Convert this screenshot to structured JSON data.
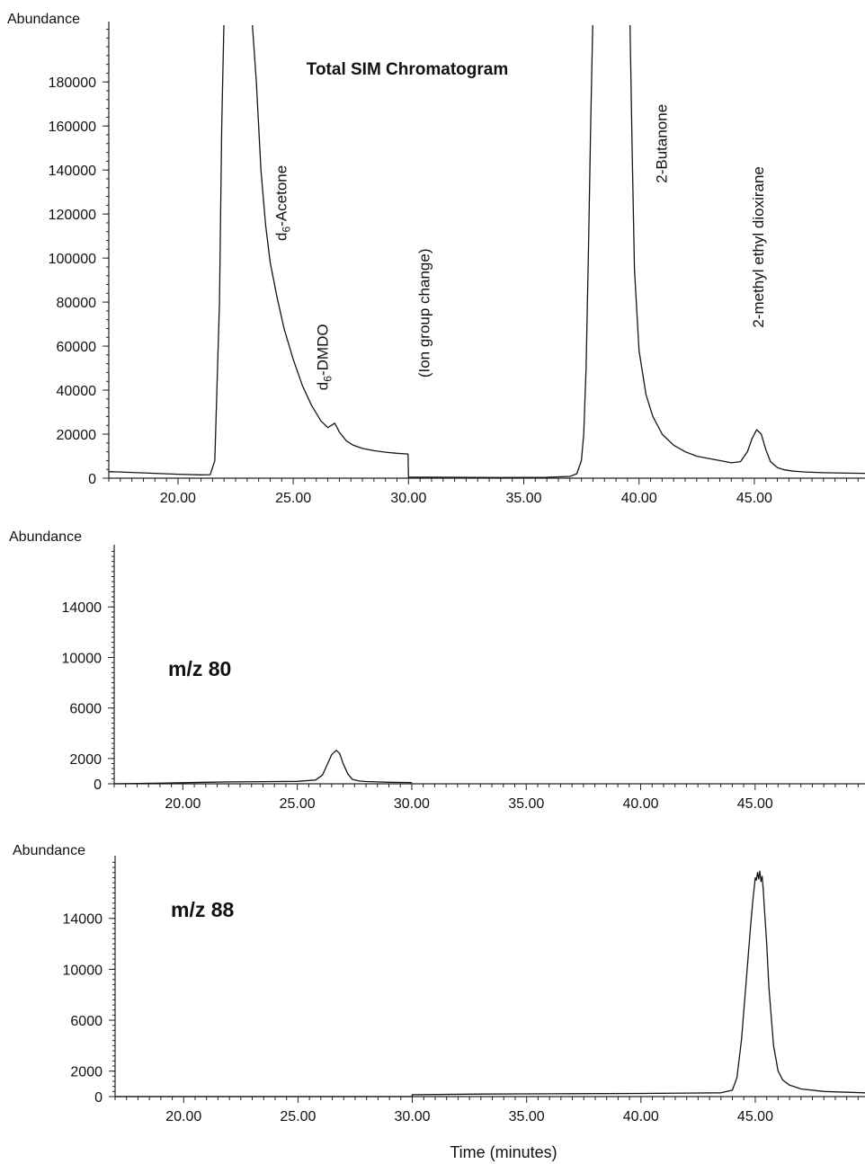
{
  "chart_data": [
    {
      "type": "line",
      "id": "total",
      "title": "Total SIM Chromatogram",
      "ylabel": "Abundance",
      "xlim": [
        17.0,
        49.8
      ],
      "ylim": [
        0,
        205000
      ],
      "xticks": [
        20,
        25,
        30,
        35,
        40,
        45
      ],
      "xtick_labels": [
        "20.00",
        "25.00",
        "30.00",
        "35.00",
        "40.00",
        "45.00"
      ],
      "yticks": [
        0,
        20000,
        40000,
        60000,
        80000,
        100000,
        120000,
        140000,
        160000,
        180000
      ],
      "ytick_labels": [
        "0",
        "20000",
        "40000",
        "60000",
        "80000",
        "100000",
        "120000",
        "140000",
        "160000",
        "180000"
      ],
      "series": [
        {
          "x": [
            17.0,
            18.0,
            19.0,
            20.0,
            21.0,
            21.4,
            21.6,
            21.8,
            21.9,
            22.0,
            22.2,
            22.5,
            23.0,
            23.2,
            23.4,
            23.6,
            23.8,
            24.0,
            24.3,
            24.6,
            25.0,
            25.4,
            25.8,
            26.2,
            26.5,
            26.8,
            27.0,
            27.3,
            27.6,
            28.0,
            28.5,
            29.0,
            29.5,
            29.98,
            30.0,
            32.0,
            34.0,
            36.0,
            37.0,
            37.3,
            37.5,
            37.6,
            37.7,
            37.8,
            37.9,
            38.0,
            39.0,
            39.6,
            39.7,
            39.8,
            40.0,
            40.3,
            40.6,
            41.0,
            41.5,
            42.0,
            42.5,
            43.0,
            43.5,
            44.0,
            44.4,
            44.7,
            44.9,
            45.1,
            45.3,
            45.5,
            45.7,
            46.0,
            46.3,
            46.7,
            47.2,
            48.0,
            49.0,
            49.8
          ],
          "y": [
            3000,
            2600,
            2200,
            1800,
            1500,
            1600,
            8000,
            80000,
            160000,
            210000,
            210000,
            210000,
            210000,
            210000,
            180000,
            140000,
            115000,
            98000,
            82000,
            68000,
            54000,
            42000,
            33000,
            26000,
            23000,
            25000,
            21000,
            17000,
            15000,
            13500,
            12500,
            11800,
            11300,
            11000,
            500,
            400,
            300,
            400,
            800,
            2000,
            8000,
            20000,
            50000,
            100000,
            160000,
            210000,
            210000,
            210000,
            150000,
            95000,
            58000,
            38000,
            28000,
            20000,
            15000,
            12000,
            10000,
            9000,
            8000,
            7000,
            7500,
            12000,
            18000,
            22000,
            20000,
            13000,
            7500,
            4800,
            3800,
            3200,
            2800,
            2500,
            2300,
            2200
          ]
        }
      ],
      "annotations": [
        {
          "text": "d6-Acetone",
          "base": "d",
          "sub": "6",
          "rest": "-Acetone",
          "x": 24.7,
          "y": 125000
        },
        {
          "text": "d6-DMDO",
          "base": "d",
          "sub": "6",
          "rest": "-DMDO",
          "x": 26.5,
          "y": 55000
        },
        {
          "text": "(Ion group change)",
          "x": 30.9,
          "y": 75000
        },
        {
          "text": "2-Butanone",
          "x": 41.2,
          "y": 152000
        },
        {
          "text": "2-methyl ethyl dioxirane",
          "x": 45.4,
          "y": 105000
        }
      ]
    },
    {
      "type": "line",
      "id": "mz80",
      "label": "m/z 80",
      "ylabel": "Abundance",
      "xlim": [
        17.0,
        49.8
      ],
      "ylim": [
        0,
        18500
      ],
      "xticks": [
        20,
        25,
        30,
        35,
        40,
        45
      ],
      "xtick_labels": [
        "20.00",
        "25.00",
        "30.00",
        "35.00",
        "40.00",
        "45.00"
      ],
      "yticks": [
        0,
        2000,
        6000,
        10000,
        14000
      ],
      "ytick_labels": [
        "0",
        "2000",
        "6000",
        "10000",
        "14000"
      ],
      "series": [
        {
          "x": [
            17.0,
            19.0,
            21.0,
            22.0,
            23.5,
            25.0,
            25.8,
            26.1,
            26.3,
            26.5,
            26.7,
            26.85,
            27.0,
            27.2,
            27.4,
            27.7,
            28.0,
            28.5,
            29.0,
            29.98,
            30.0
          ],
          "y": [
            0,
            50,
            120,
            150,
            170,
            190,
            300,
            700,
            1500,
            2300,
            2650,
            2400,
            1600,
            800,
            350,
            220,
            180,
            150,
            120,
            100,
            0
          ]
        }
      ]
    },
    {
      "type": "line",
      "id": "mz88",
      "label": "m/z 88",
      "ylabel": "Abundance",
      "xlabel": "Time (minutes)",
      "xlim": [
        17.0,
        49.8
      ],
      "ylim": [
        0,
        18500
      ],
      "xticks": [
        20,
        25,
        30,
        35,
        40,
        45
      ],
      "xtick_labels": [
        "20.00",
        "25.00",
        "30.00",
        "35.00",
        "40.00",
        "45.00"
      ],
      "yticks": [
        0,
        2000,
        6000,
        10000,
        14000
      ],
      "ytick_labels": [
        "0",
        "2000",
        "6000",
        "10000",
        "14000"
      ],
      "series": [
        {
          "x": [
            17.0,
            29.98,
            30.0,
            33.0,
            36.0,
            40.0,
            43.5,
            44.0,
            44.2,
            44.4,
            44.6,
            44.8,
            44.9,
            45.0,
            45.05,
            45.1,
            45.15,
            45.2,
            45.25,
            45.3,
            45.35,
            45.4,
            45.5,
            45.6,
            45.8,
            46.0,
            46.2,
            46.5,
            47.0,
            48.0,
            49.8
          ],
          "y": [
            0,
            0,
            150,
            200,
            220,
            250,
            300,
            500,
            1500,
            4500,
            9000,
            13500,
            15500,
            17200,
            17000,
            17600,
            17100,
            17700,
            16900,
            17300,
            16200,
            14800,
            12000,
            8500,
            4000,
            2000,
            1300,
            900,
            600,
            400,
            300
          ]
        }
      ]
    }
  ]
}
